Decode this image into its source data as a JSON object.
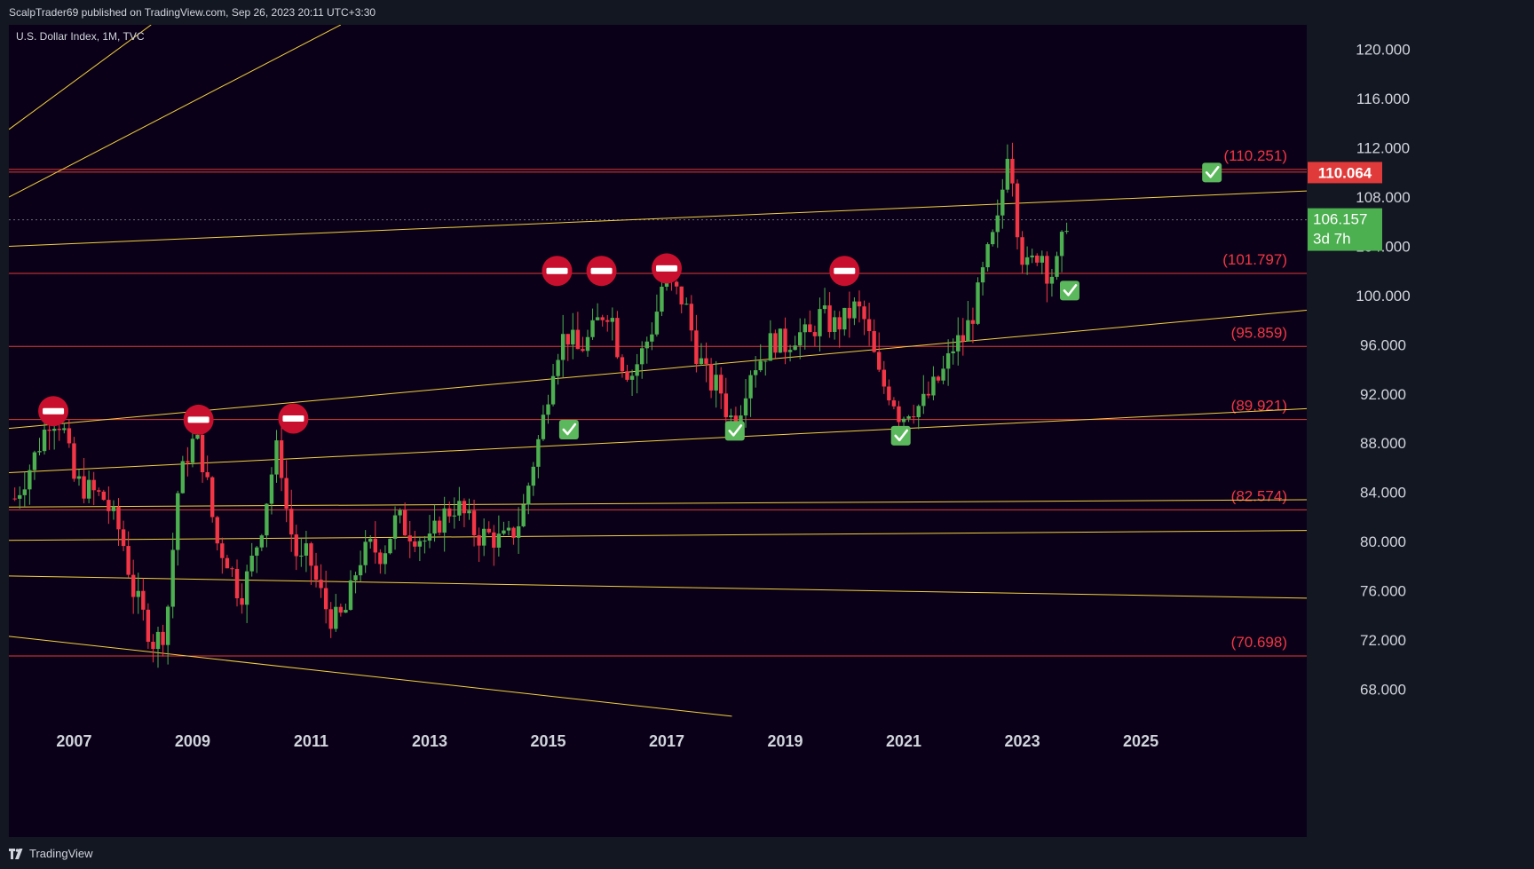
{
  "header": {
    "published": "ScalpTrader69 published on TradingView.com, Sep 26, 2023 20:11 UTC+3:30"
  },
  "legend": {
    "symbol": "U.S. Dollar Index, 1M, TVC"
  },
  "footer": {
    "brand": "TradingView"
  },
  "colors": {
    "background": "#0a0118",
    "panel": "#131722",
    "up": "#4caf50",
    "down": "#f23645",
    "trendline": "#f4d03f",
    "level": "#e03a3a",
    "level_label": "#f23645",
    "check": "#5cb85c",
    "stop": "#c8102e"
  },
  "chart_data": {
    "type": "candlestick",
    "title": "U.S. Dollar Index, 1M, TVC",
    "ylim": [
      65,
      122
    ],
    "xlim": [
      2005.9,
      2027.8
    ],
    "y_ticks": [
      "120.000",
      "116.000",
      "112.000",
      "108.000",
      "104.000",
      "100.000",
      "96.000",
      "92.000",
      "88.000",
      "84.000",
      "80.000",
      "76.000",
      "72.000",
      "68.000"
    ],
    "x_ticks": [
      "2007",
      "2009",
      "2011",
      "2013",
      "2015",
      "2017",
      "2019",
      "2021",
      "2023",
      "2025"
    ],
    "close_path": [
      [
        2006.0,
        83.5
      ],
      [
        2006.3,
        86.5
      ],
      [
        2006.6,
        90.2
      ],
      [
        2006.8,
        89.6
      ],
      [
        2007.0,
        85.0
      ],
      [
        2007.2,
        84.3
      ],
      [
        2007.5,
        83.5
      ],
      [
        2007.8,
        80.5
      ],
      [
        2008.0,
        76.0
      ],
      [
        2008.2,
        73.5
      ],
      [
        2008.35,
        71.7
      ],
      [
        2008.55,
        73.0
      ],
      [
        2008.75,
        84.0
      ],
      [
        2008.9,
        87.0
      ],
      [
        2009.05,
        88.5
      ],
      [
        2009.2,
        86.0
      ],
      [
        2009.4,
        80.0
      ],
      [
        2009.6,
        78.5
      ],
      [
        2009.8,
        75.5
      ],
      [
        2009.95,
        77.5
      ],
      [
        2010.15,
        81.0
      ],
      [
        2010.35,
        86.0
      ],
      [
        2010.45,
        88.0
      ],
      [
        2010.6,
        82.0
      ],
      [
        2010.8,
        78.0
      ],
      [
        2010.95,
        79.0
      ],
      [
        2011.1,
        76.5
      ],
      [
        2011.3,
        74.0
      ],
      [
        2011.45,
        73.5
      ],
      [
        2011.6,
        74.5
      ],
      [
        2011.8,
        78.5
      ],
      [
        2012.0,
        79.5
      ],
      [
        2012.2,
        79.0
      ],
      [
        2012.45,
        82.0
      ],
      [
        2012.6,
        81.0
      ],
      [
        2012.8,
        80.5
      ],
      [
        2013.0,
        79.8
      ],
      [
        2013.2,
        82.0
      ],
      [
        2013.45,
        83.0
      ],
      [
        2013.6,
        82.0
      ],
      [
        2013.8,
        80.5
      ],
      [
        2014.0,
        80.5
      ],
      [
        2014.2,
        80.0
      ],
      [
        2014.35,
        80.3
      ],
      [
        2014.55,
        82.0
      ],
      [
        2014.75,
        86.5
      ],
      [
        2014.9,
        89.5
      ],
      [
        2015.1,
        95.0
      ],
      [
        2015.3,
        97.0
      ],
      [
        2015.5,
        95.5
      ],
      [
        2015.7,
        96.5
      ],
      [
        2015.9,
        98.5
      ],
      [
        2016.05,
        99.0
      ],
      [
        2016.2,
        95.0
      ],
      [
        2016.4,
        93.5
      ],
      [
        2016.6,
        95.5
      ],
      [
        2016.8,
        98.0
      ],
      [
        2016.95,
        101.5
      ],
      [
        2017.1,
        100.5
      ],
      [
        2017.3,
        99.5
      ],
      [
        2017.5,
        95.5
      ],
      [
        2017.7,
        93.0
      ],
      [
        2017.9,
        92.5
      ],
      [
        2018.05,
        90.0
      ],
      [
        2018.2,
        90.2
      ],
      [
        2018.4,
        94.0
      ],
      [
        2018.6,
        95.0
      ],
      [
        2018.8,
        96.5
      ],
      [
        2019.0,
        96.0
      ],
      [
        2019.2,
        97.0
      ],
      [
        2019.4,
        96.5
      ],
      [
        2019.6,
        98.5
      ],
      [
        2019.8,
        97.5
      ],
      [
        2020.0,
        98.0
      ],
      [
        2020.15,
        99.0
      ],
      [
        2020.3,
        98.5
      ],
      [
        2020.45,
        96.0
      ],
      [
        2020.6,
        93.0
      ],
      [
        2020.8,
        92.0
      ],
      [
        2020.95,
        90.0
      ],
      [
        2021.1,
        91.0
      ],
      [
        2021.3,
        91.0
      ],
      [
        2021.5,
        92.5
      ],
      [
        2021.7,
        94.0
      ],
      [
        2021.85,
        96.0
      ],
      [
        2022.0,
        96.5
      ],
      [
        2022.2,
        99.0
      ],
      [
        2022.4,
        103.0
      ],
      [
        2022.6,
        106.0
      ],
      [
        2022.75,
        112.0
      ],
      [
        2022.85,
        109.5
      ],
      [
        2022.95,
        104.0
      ],
      [
        2023.1,
        102.0
      ],
      [
        2023.3,
        104.0
      ],
      [
        2023.45,
        101.5
      ],
      [
        2023.6,
        102.5
      ],
      [
        2023.75,
        106.2
      ]
    ],
    "levels": [
      {
        "value": 110.251,
        "label": "(110.251)",
        "check": true
      },
      {
        "value": 101.797,
        "label": "(101.797)"
      },
      {
        "value": 95.859,
        "label": "(95.859)"
      },
      {
        "value": 89.921,
        "label": "(89.921)"
      },
      {
        "value": 82.574,
        "label": "(82.574)"
      },
      {
        "value": 70.698,
        "label": "(70.698)"
      }
    ],
    "trendlines": [
      {
        "x1": 2005.9,
        "y1": 113.5,
        "x2": 2008.3,
        "y2": 122.0
      },
      {
        "x1": 2005.9,
        "y1": 108.0,
        "x2": 2011.5,
        "y2": 122.0
      },
      {
        "x1": 2005.9,
        "y1": 104.0,
        "x2": 2027.8,
        "y2": 108.5
      },
      {
        "x1": 2005.9,
        "y1": 89.2,
        "x2": 2027.8,
        "y2": 98.8
      },
      {
        "x1": 2005.9,
        "y1": 85.6,
        "x2": 2027.8,
        "y2": 90.8
      },
      {
        "x1": 2005.9,
        "y1": 82.8,
        "x2": 2027.8,
        "y2": 83.4
      },
      {
        "x1": 2005.9,
        "y1": 80.1,
        "x2": 2027.8,
        "y2": 80.9
      },
      {
        "x1": 2005.9,
        "y1": 77.2,
        "x2": 2027.8,
        "y2": 75.4
      },
      {
        "x1": 2005.9,
        "y1": 72.3,
        "x2": 2018.1,
        "y2": 65.8
      }
    ],
    "stop_markers": [
      [
        2006.65,
        90.6
      ],
      [
        2009.1,
        89.9
      ],
      [
        2010.7,
        90.0
      ],
      [
        2015.15,
        102.0
      ],
      [
        2015.9,
        102.0
      ],
      [
        2017.0,
        102.2
      ],
      [
        2020.0,
        102.0
      ]
    ],
    "check_markers": [
      [
        2015.35,
        89.1
      ],
      [
        2018.15,
        89.0
      ],
      [
        2020.95,
        88.6
      ],
      [
        2023.8,
        100.4
      ],
      [
        2026.2,
        110.0
      ]
    ],
    "current_price": {
      "value": 106.157,
      "label": "106.157",
      "countdown": "3d 7h"
    },
    "tag_price": {
      "value": 110.064,
      "label": "110.064"
    },
    "dotted_line": 106.157
  }
}
